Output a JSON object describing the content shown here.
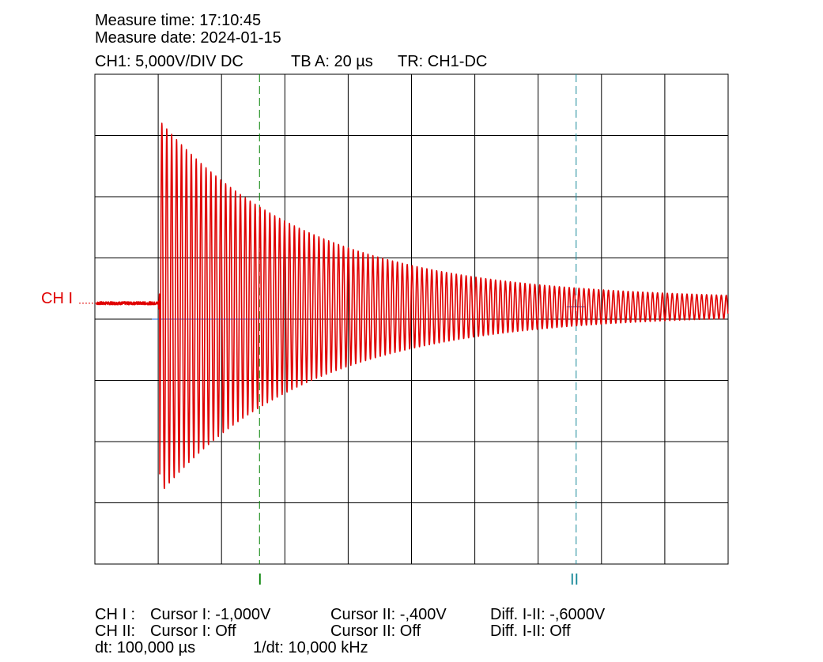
{
  "header": {
    "measure_time": "Measure time: 17:10:45",
    "measure_date": "Measure date: 2024-01-15",
    "ch1_setting": "CH1: 5,000V/DIV DC",
    "timebase": "TB A: 20 µs",
    "trigger": "TR: CH1-DC"
  },
  "channel_marker_label": "CH I",
  "cursor_labels": {
    "cursor1": "I",
    "cursor2": "II"
  },
  "readouts": {
    "row1": {
      "ch": "CH I :",
      "c1": "Cursor I: -1,000V",
      "c2": "Cursor II: -,400V",
      "diff": "Diff. I-II: -,6000V"
    },
    "row2": {
      "ch": "CH II:",
      "c1": "Cursor I: Off",
      "c2": "Cursor II: Off",
      "diff": "Diff. I-II: Off"
    },
    "row3": {
      "dt": "dt: 100,000 µs",
      "inv_dt": "1/dt: 10,000 kHz"
    }
  },
  "colors": {
    "trace": "#e00000",
    "cursor1": "#008000",
    "cursor2": "#1a8a9a",
    "ground": "#1f5fd0",
    "grid": "#000000"
  },
  "chart_data": {
    "type": "line",
    "grid": {
      "x_divisions": 10,
      "y_divisions": 8
    },
    "x_unit": "µs",
    "x_per_div": 20,
    "x_range": [
      0,
      200
    ],
    "y_unit": "V",
    "y_per_div": 5,
    "y_range": [
      -20,
      20
    ],
    "series": [
      {
        "waveform": "decaying oscillation",
        "pre_trigger_level_V": 1.3,
        "trigger_time_us": 20.5,
        "peak_positive_V": 16.2,
        "peak_negative_V": -14.3,
        "oscillation_period_us": 1.55,
        "decay_time_constant_us": 48,
        "final_offset_V": 1.0,
        "final_amplitude_V": 0.6
      }
    ],
    "cursors": [
      {
        "name": "I",
        "time_us": 52,
        "level_V": -1.0
      },
      {
        "name": "II",
        "time_us": 152,
        "level_V": -0.4
      }
    ]
  }
}
